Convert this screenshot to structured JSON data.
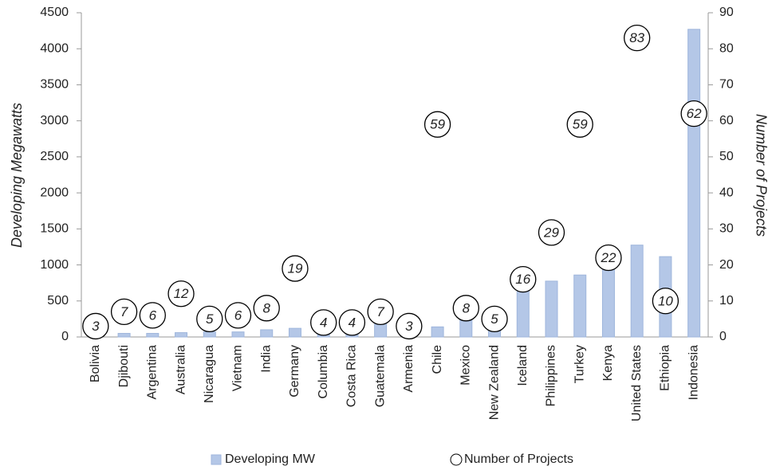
{
  "chart_data": {
    "type": "bar_scatter",
    "categories": [
      "Bolivia",
      "Djibouti",
      "Argentina",
      "Australia",
      "Nicaragua",
      "Vietnam",
      "India",
      "Germany",
      "Columbia",
      "Costa Rica",
      "Guatemala",
      "Armenia",
      "Chile",
      "Mexico",
      "New Zealand",
      "Iceland",
      "Philippines",
      "Turkey",
      "Kenya",
      "United States",
      "Ethiopia",
      "Indonesia"
    ],
    "series": [
      {
        "name": "Developing MW",
        "type": "bar",
        "color": "#b4c7e7",
        "values": [
          30,
          50,
          50,
          60,
          70,
          70,
          100,
          120,
          140,
          150,
          180,
          100,
          140,
          300,
          400,
          650,
          775,
          860,
          950,
          1275,
          1115,
          4270
        ]
      },
      {
        "name": "Number of Projects",
        "type": "scatter",
        "axis": "y2",
        "color": "#000000",
        "values": [
          3,
          7,
          6,
          12,
          5,
          6,
          8,
          19,
          4,
          4,
          7,
          3,
          59,
          8,
          5,
          16,
          29,
          59,
          22,
          83,
          10,
          62
        ]
      }
    ],
    "ylabel": "Developing Megawatts",
    "y2label": "Number of Projects",
    "ylim": [
      0,
      4500
    ],
    "yticks": [
      0,
      500,
      1000,
      1500,
      2000,
      2500,
      3000,
      3500,
      4000,
      4500
    ],
    "y2lim": [
      0,
      90
    ],
    "y2ticks": [
      0,
      10,
      20,
      30,
      40,
      50,
      60,
      70,
      80,
      90
    ],
    "grid": false,
    "legend": "bottom"
  }
}
